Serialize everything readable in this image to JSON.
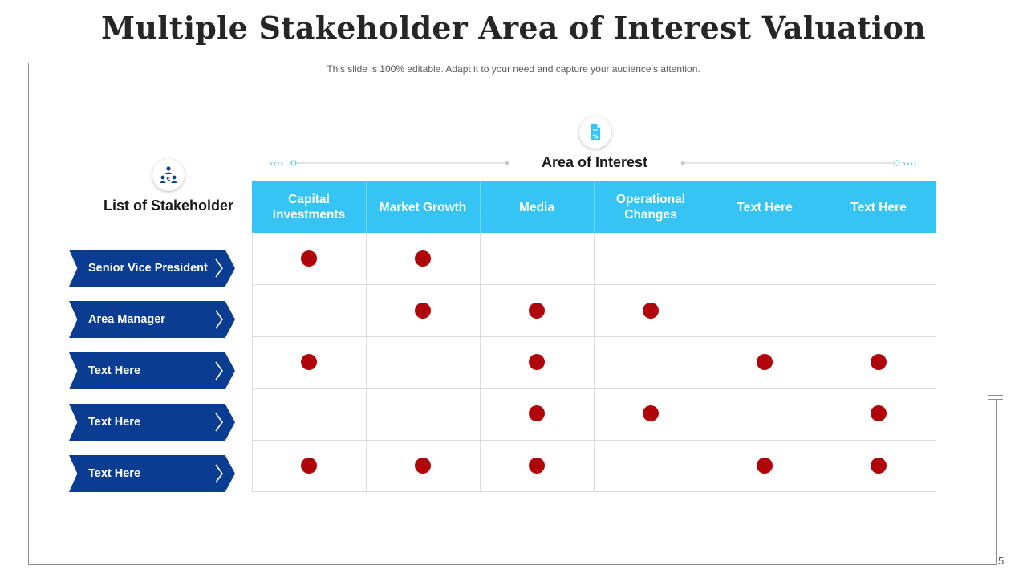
{
  "slide": {
    "title": "Multiple Stakeholder Area of Interest Valuation",
    "subtitle": "This slide is 100% editable. Adapt it to your need and capture your audience’s attention.",
    "page_number": "5"
  },
  "stakeholders": {
    "heading": "List of Stakeholder",
    "icon": "stakeholder-group-icon",
    "rows": [
      "Senior Vice President",
      "Area Manager",
      "Text Here",
      "Text Here",
      "Text Here"
    ]
  },
  "area_of_interest": {
    "heading": "Area of Interest",
    "icon": "document-percent-icon",
    "columns": [
      "Capital Investments",
      "Market Growth",
      "Media",
      "Operational Changes",
      "Text Here",
      "Text Here"
    ]
  },
  "matrix": [
    [
      true,
      true,
      false,
      false,
      false,
      false
    ],
    [
      false,
      true,
      true,
      true,
      false,
      false
    ],
    [
      true,
      false,
      true,
      false,
      true,
      true
    ],
    [
      false,
      false,
      true,
      true,
      false,
      true
    ],
    [
      true,
      true,
      true,
      false,
      true,
      true
    ]
  ],
  "colors": {
    "header_fill": "#36c4f5",
    "arrow_fill": "#0a3d91",
    "dot": "#b0050a",
    "accent_line": "#36c4f5"
  }
}
